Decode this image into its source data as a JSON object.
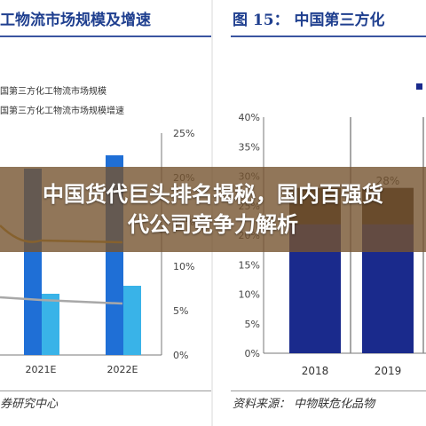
{
  "banner": {
    "headline": "中国货代巨头排名揭秘，国内百强货代公司竞争力解析"
  },
  "colors": {
    "title": "#1f3f8f",
    "bar_blue": "#1f6fd6",
    "bar_light": "#39b3e8",
    "line_gold": "#c9962a",
    "line_gray": "#a8a8a8",
    "navy": "#1a2a8c",
    "dark_bar": "#3a2a20",
    "banner_bg": "#765430"
  },
  "left_figure": {
    "title_fragment": "工物流市场规模及增速",
    "legend": [
      "国第三方化工物流市场规模",
      "国第三方化工物流市场规模增速"
    ],
    "source_fragment": "券研究中心"
  },
  "right_figure": {
    "title_fragment": "图 15： 中国第三方化",
    "source_fragment": "资料来源： 中物联危化品物"
  },
  "chart_data": [
    {
      "type": "bar",
      "categories": [
        "2021E",
        "2022E"
      ],
      "series": [
        {
          "name": "国第三方化工物流市场规模",
          "values": [
            21,
            22.5
          ]
        },
        {
          "name": "",
          "values": [
            6.9,
            7.8
          ]
        },
        {
          "name": "国第三方化工物流市场规模增速",
          "values": [
            12.9,
            12.7
          ],
          "type": "line"
        },
        {
          "name": "",
          "values": [
            6.2,
            5.8
          ],
          "type": "line"
        }
      ],
      "y2ticks": [
        "0%",
        "5%",
        "10%",
        "15%",
        "20%",
        "25%"
      ],
      "y2lim": [
        0,
        25
      ]
    },
    {
      "type": "bar",
      "categories": [
        "2018",
        "2019"
      ],
      "series": [
        {
          "name": "",
          "values": [
            28,
            28
          ],
          "labels": [
            "",
            "28%"
          ]
        }
      ],
      "yticks": [
        "0%",
        "5%",
        "10%",
        "15%",
        "20%",
        "25%",
        "30%",
        "35%",
        "40%"
      ],
      "ylim": [
        0,
        40
      ]
    }
  ]
}
